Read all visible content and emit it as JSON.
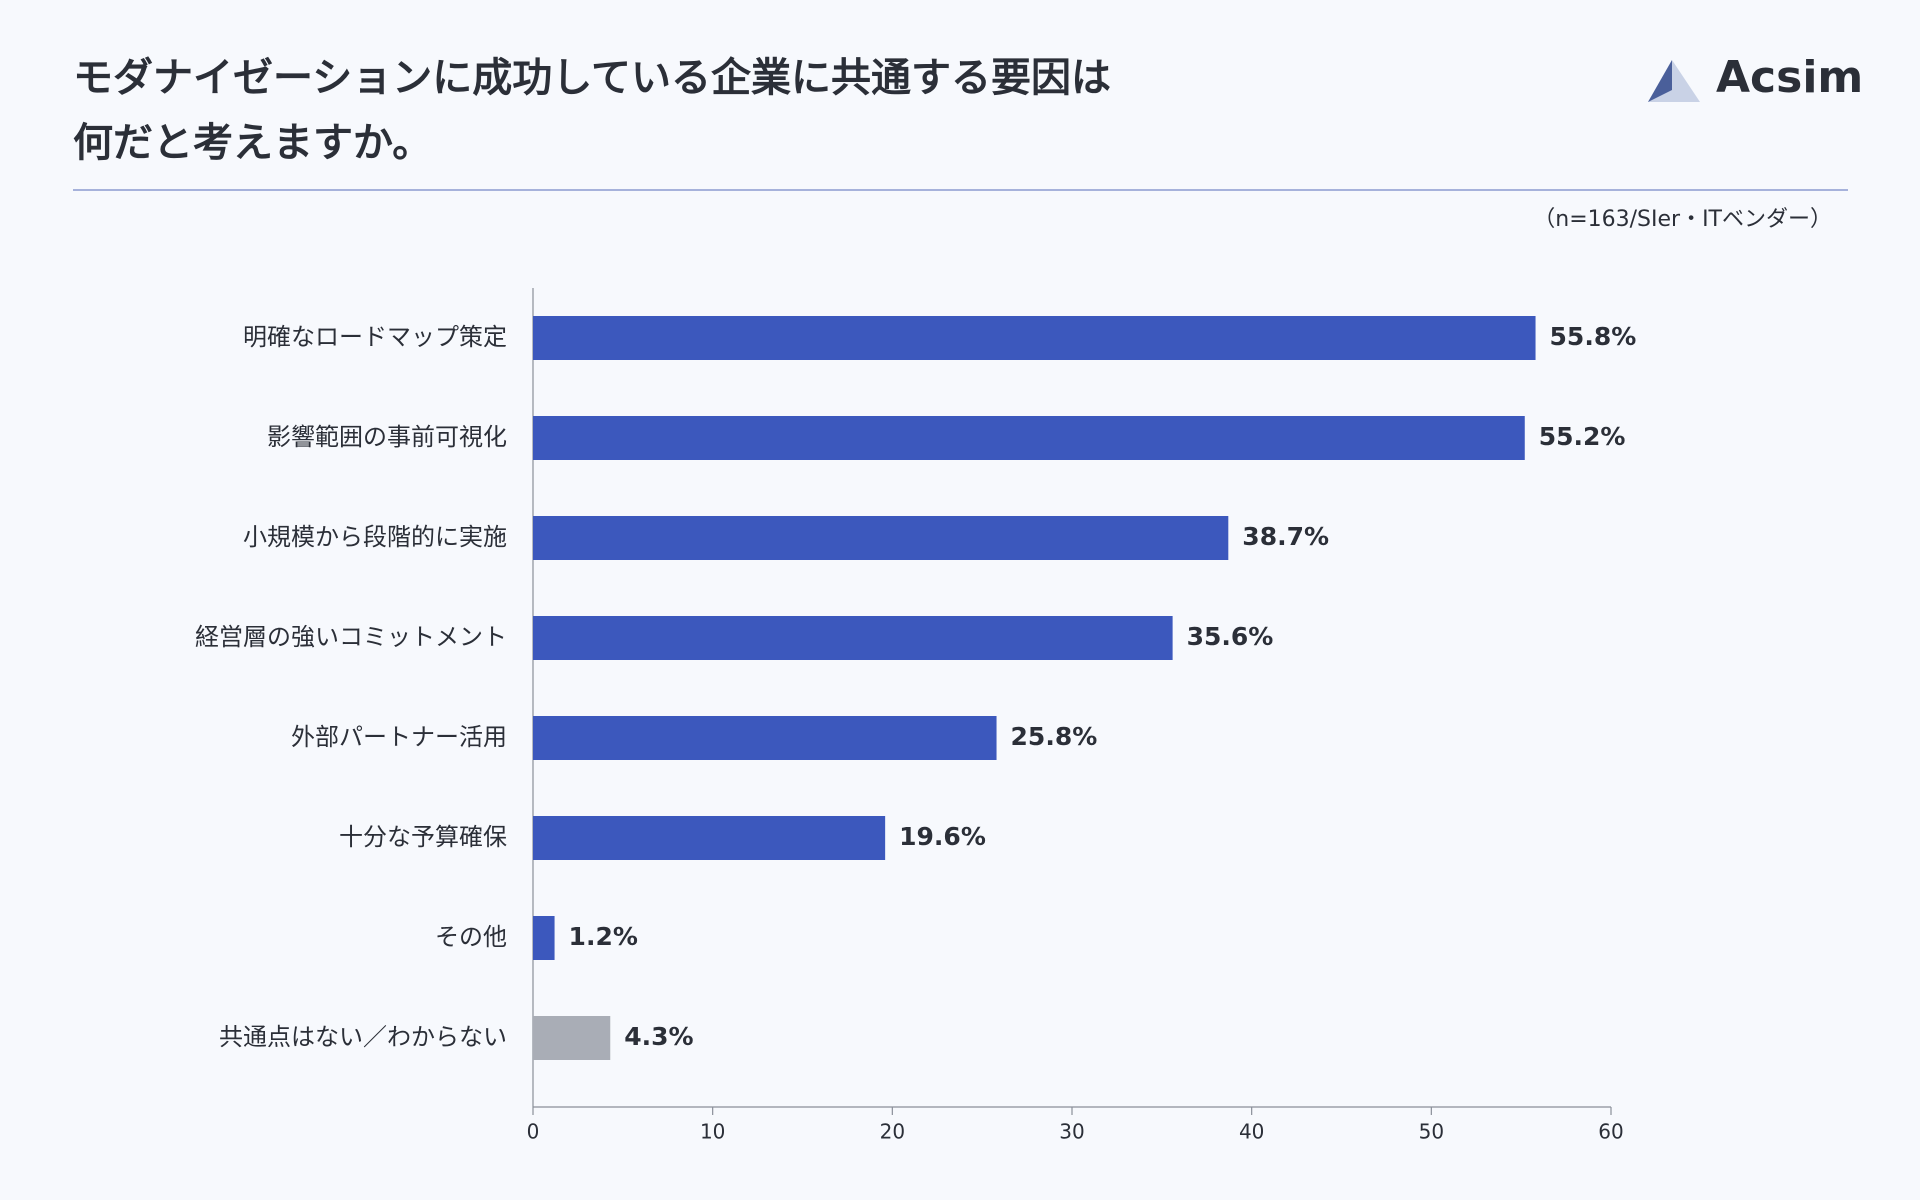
{
  "logo": "Acsim",
  "chart_data": {
    "type": "barh",
    "title": [
      "モダナイゼーションに成功している企業に共通する要因は",
      "何だと考えますか。"
    ],
    "subtitle": "（n=163/SIer・ITベンダー）",
    "categories": [
      "明確なロードマップ策定",
      "影響範囲の事前可視化",
      "小規模から段階的に実施",
      "経営層の強いコミットメント",
      "外部パートナー活用",
      "十分な予算確保",
      "その他",
      "共通点はない／わからない"
    ],
    "values": [
      55.8,
      55.2,
      38.7,
      35.6,
      25.8,
      19.6,
      1.2,
      4.3
    ],
    "value_labels": [
      "55.8%",
      "55.2%",
      "38.7%",
      "35.6%",
      "25.8%",
      "19.6%",
      "1.2%",
      "4.3%"
    ],
    "colors": [
      "#3c58bd",
      "#3c58bd",
      "#3c58bd",
      "#3c58bd",
      "#3c58bd",
      "#3c58bd",
      "#3c58bd",
      "#a9adb6"
    ],
    "xlim": [
      0,
      60
    ],
    "xticks": [
      0,
      10,
      20,
      30,
      40,
      50,
      60
    ],
    "grid": false
  }
}
